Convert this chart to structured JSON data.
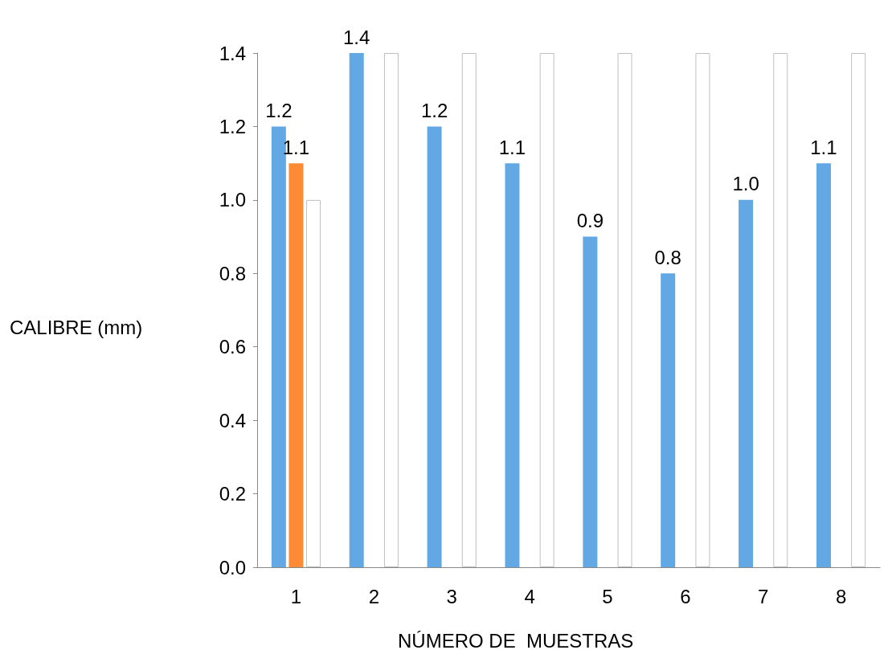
{
  "chart_data": {
    "type": "bar",
    "xlabel": "NÚMERO DE  MUESTRAS",
    "ylabel": "CALIBRE (mm)",
    "categories": [
      "1",
      "2",
      "3",
      "4",
      "5",
      "6",
      "7",
      "8"
    ],
    "series": [
      {
        "color": "#62a8e5",
        "values": [
          1.2,
          1.4,
          1.2,
          1.1,
          0.9,
          0.8,
          1.0,
          1.1
        ],
        "value_labels": [
          "1.2",
          "1.4",
          "1.2",
          "1.1",
          "0.9",
          "0.8",
          "1.0",
          "1.1"
        ]
      },
      {
        "color": "#fd8b35",
        "values": [
          1.1,
          null,
          null,
          null,
          null,
          null,
          null,
          null
        ],
        "value_labels": [
          "1.1",
          null,
          null,
          null,
          null,
          null,
          null,
          null
        ]
      },
      {
        "color": "#ffffff",
        "values": [
          1.0,
          1.4,
          1.4,
          1.4,
          1.4,
          1.4,
          1.4,
          1.4
        ]
      }
    ],
    "ylim": [
      0,
      1.4
    ],
    "yticks": [
      {
        "value": 0,
        "label": "0.0"
      },
      0.2,
      0.4,
      0.6,
      0.8,
      {
        "value": 1,
        "label": "1.0"
      },
      1.2,
      1.4
    ],
    "grid": false
  }
}
